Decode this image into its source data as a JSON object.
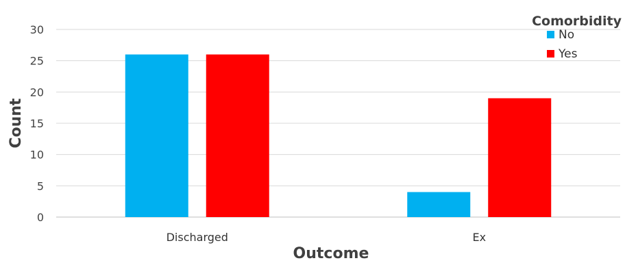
{
  "chart_data": {
    "type": "bar",
    "categories": [
      "Discharged",
      "Ex"
    ],
    "series": [
      {
        "name": "No",
        "color": "#00B0F0",
        "values": [
          26,
          4
        ]
      },
      {
        "name": "Yes",
        "color": "#FF0000",
        "values": [
          26,
          19
        ]
      }
    ],
    "xlabel": "Outcome",
    "ylabel": "Count",
    "ylim": [
      0,
      30
    ],
    "yticks": [
      0,
      5,
      10,
      15,
      20,
      25,
      30
    ],
    "grid": true,
    "legend": {
      "title": "Comorbidity",
      "placement": "top-right"
    }
  }
}
